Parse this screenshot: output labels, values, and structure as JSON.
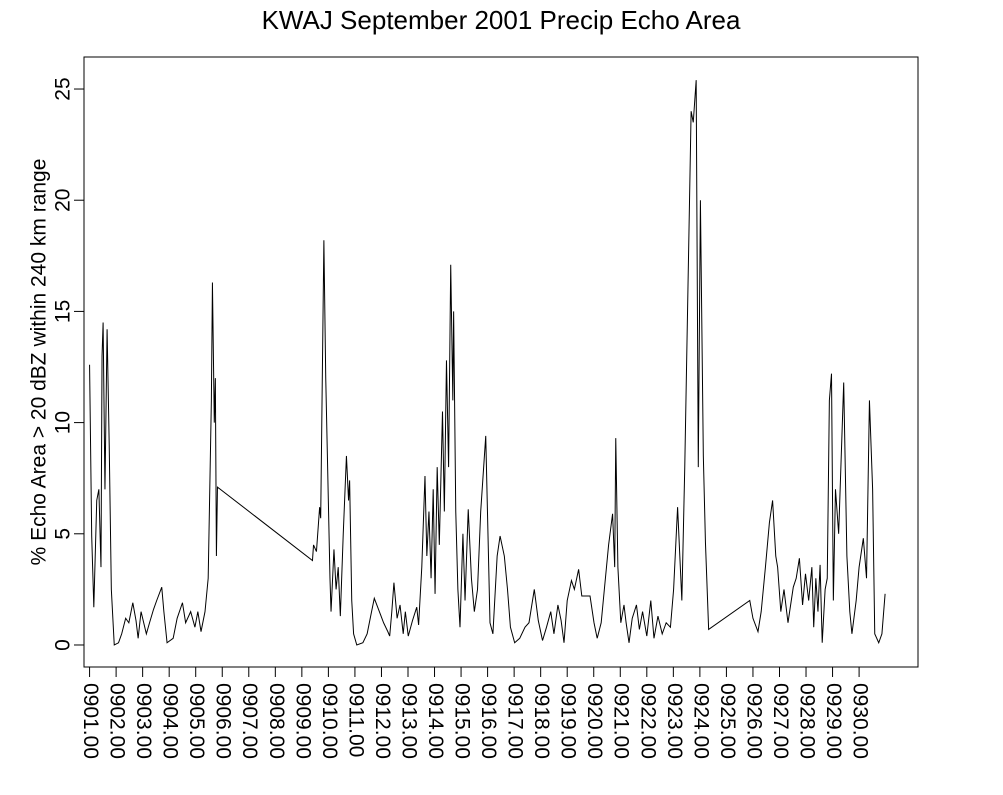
{
  "chart_data": {
    "type": "line",
    "title": "KWAJ September 2001 Precip Echo Area",
    "y_label": "% Echo Area > 20 dBZ within 240 km range",
    "xlim": [
      0.79,
      32.22
    ],
    "ylim": [
      -0.99,
      26.44
    ],
    "yticks": [
      0,
      5,
      10,
      15,
      20,
      25
    ],
    "xticks": [
      {
        "value": 1,
        "label": "0901.00"
      },
      {
        "value": 2,
        "label": "0902.00"
      },
      {
        "value": 3,
        "label": "0903.00"
      },
      {
        "value": 4,
        "label": "0904.00"
      },
      {
        "value": 5,
        "label": "0905.00"
      },
      {
        "value": 6,
        "label": "0906.00"
      },
      {
        "value": 7,
        "label": "0907.00"
      },
      {
        "value": 8,
        "label": "0908.00"
      },
      {
        "value": 9,
        "label": "0909.00"
      },
      {
        "value": 10,
        "label": "0910.00"
      },
      {
        "value": 11,
        "label": "0911.00"
      },
      {
        "value": 12,
        "label": "0912.00"
      },
      {
        "value": 13,
        "label": "0913.00"
      },
      {
        "value": 14,
        "label": "0914.00"
      },
      {
        "value": 15,
        "label": "0915.00"
      },
      {
        "value": 16,
        "label": "0916.00"
      },
      {
        "value": 17,
        "label": "0917.00"
      },
      {
        "value": 18,
        "label": "0918.00"
      },
      {
        "value": 19,
        "label": "0919.00"
      },
      {
        "value": 20,
        "label": "0920.00"
      },
      {
        "value": 21,
        "label": "0921.00"
      },
      {
        "value": 22,
        "label": "0922.00"
      },
      {
        "value": 23,
        "label": "0923.00"
      },
      {
        "value": 24,
        "label": "0924.00"
      },
      {
        "value": 25,
        "label": "0925.00"
      },
      {
        "value": 26,
        "label": "0926.00"
      },
      {
        "value": 27,
        "label": "0927.00"
      },
      {
        "value": 28,
        "label": "0928.00"
      },
      {
        "value": 29,
        "label": "0929.00"
      },
      {
        "value": 30,
        "label": "0930.00"
      }
    ],
    "x": [
      1.0,
      1.08,
      1.16,
      1.27,
      1.35,
      1.43,
      1.47,
      1.51,
      1.58,
      1.66,
      1.74,
      1.82,
      1.93,
      2.09,
      2.21,
      2.36,
      2.48,
      2.63,
      2.75,
      2.83,
      2.94,
      3.14,
      3.26,
      3.41,
      3.53,
      3.72,
      3.8,
      3.92,
      4.15,
      4.3,
      4.5,
      4.62,
      4.81,
      4.97,
      5.08,
      5.2,
      5.35,
      5.47,
      5.59,
      5.63,
      5.7,
      5.74,
      5.78,
      5.82,
      9.4,
      9.44,
      9.55,
      9.67,
      9.71,
      9.83,
      9.9,
      10.06,
      10.1,
      10.21,
      10.29,
      10.37,
      10.45,
      10.56,
      10.68,
      10.76,
      10.8,
      10.88,
      10.95,
      11.07,
      11.3,
      11.46,
      11.61,
      11.73,
      11.89,
      12.08,
      12.24,
      12.31,
      12.39,
      12.47,
      12.59,
      12.7,
      12.82,
      12.9,
      13.01,
      13.17,
      13.33,
      13.4,
      13.52,
      13.64,
      13.71,
      13.79,
      13.87,
      13.95,
      14.02,
      14.1,
      14.18,
      14.3,
      14.37,
      14.45,
      14.53,
      14.61,
      14.69,
      14.72,
      14.8,
      14.88,
      14.96,
      15.07,
      15.15,
      15.27,
      15.39,
      15.5,
      15.62,
      15.74,
      15.93,
      16.09,
      16.2,
      16.36,
      16.47,
      16.63,
      16.75,
      16.86,
      17.02,
      17.21,
      17.41,
      17.56,
      17.76,
      17.91,
      18.07,
      18.22,
      18.38,
      18.5,
      18.65,
      18.77,
      18.88,
      19.0,
      19.16,
      19.27,
      19.43,
      19.55,
      19.86,
      20.01,
      20.13,
      20.28,
      20.4,
      20.56,
      20.71,
      20.79,
      20.83,
      20.91,
      21.02,
      21.14,
      21.22,
      21.33,
      21.45,
      21.61,
      21.72,
      21.84,
      22.0,
      22.15,
      22.27,
      22.42,
      22.58,
      22.73,
      22.89,
      23.01,
      23.16,
      23.32,
      23.43,
      23.55,
      23.67,
      23.75,
      23.86,
      23.94,
      24.02,
      24.13,
      24.21,
      24.33,
      25.88,
      26.0,
      26.19,
      26.31,
      26.47,
      26.62,
      26.74,
      26.86,
      26.93,
      27.05,
      27.17,
      27.32,
      27.52,
      27.63,
      27.75,
      27.87,
      27.98,
      28.1,
      28.22,
      28.29,
      28.37,
      28.45,
      28.53,
      28.61,
      28.72,
      28.8,
      28.88,
      28.96,
      29.03,
      29.11,
      29.23,
      29.42,
      29.54,
      29.65,
      29.73,
      29.89,
      30.0,
      30.16,
      30.28,
      30.39,
      30.51,
      30.59,
      30.74,
      30.86,
      30.98
    ],
    "series": [
      {
        "name": "Echo Area",
        "color": "#000000",
        "values": [
          12.6,
          4.9,
          1.7,
          6.5,
          7,
          3.5,
          13,
          14.5,
          7,
          14.2,
          9,
          2.5,
          0,
          0.1,
          0.5,
          1.2,
          1.0,
          1.9,
          1.1,
          0.3,
          1.5,
          0.5,
          1.0,
          1.6,
          2.0,
          2.6,
          1.5,
          0.1,
          0.3,
          1.2,
          1.9,
          1.0,
          1.5,
          0.8,
          1.5,
          0.6,
          1.5,
          3.0,
          11,
          16.3,
          10,
          12,
          4,
          7.1,
          3.8,
          4.5,
          4.2,
          6.2,
          5.7,
          18.2,
          12,
          3,
          1.5,
          4.3,
          2.5,
          3.5,
          1.3,
          5,
          8.5,
          6.5,
          7.4,
          2,
          0.5,
          0,
          0.1,
          0.5,
          1.4,
          2.1,
          1.6,
          1.0,
          0.6,
          0.4,
          1.5,
          2.8,
          1.2,
          1.8,
          0.5,
          1.5,
          0.4,
          1.1,
          1.7,
          0.9,
          3.5,
          7.6,
          4,
          6,
          3,
          7,
          2.3,
          8,
          4.5,
          10.5,
          6,
          12.8,
          8,
          17.1,
          11,
          15,
          6,
          2.5,
          0.8,
          5,
          2,
          6.1,
          3,
          1.5,
          2.5,
          6,
          9.4,
          1,
          0.5,
          4,
          4.9,
          4,
          2.5,
          0.8,
          0.1,
          0.3,
          0.8,
          1.0,
          2.5,
          1.1,
          0.2,
          0.8,
          1.5,
          0.5,
          1.8,
          1.1,
          0.1,
          2.0,
          2.9,
          2.5,
          3.4,
          2.2,
          2.2,
          1.0,
          0.3,
          1.0,
          2.5,
          4.5,
          5.9,
          3.5,
          9.3,
          3.5,
          1.0,
          1.8,
          1.0,
          0.1,
          1.2,
          1.8,
          0.7,
          1.5,
          0.4,
          2.0,
          0.3,
          1.3,
          0.5,
          1.0,
          0.8,
          2.5,
          6.2,
          2.0,
          8,
          16,
          24,
          23.5,
          25.4,
          8,
          20,
          8.5,
          4.6,
          0.7,
          2.0,
          1.2,
          0.6,
          1.5,
          3.5,
          5.5,
          6.5,
          4,
          3.5,
          1.5,
          2.5,
          1.0,
          2.6,
          3,
          3.9,
          1.8,
          3.2,
          2,
          3.5,
          0.8,
          3,
          1.5,
          3.6,
          0.1,
          2.5,
          3,
          11,
          12.2,
          2,
          7,
          5,
          11.8,
          4,
          1.5,
          0.5,
          2,
          3.5,
          4.8,
          3,
          11,
          7,
          0.5,
          0.1,
          0.5,
          2.3
        ]
      }
    ]
  }
}
